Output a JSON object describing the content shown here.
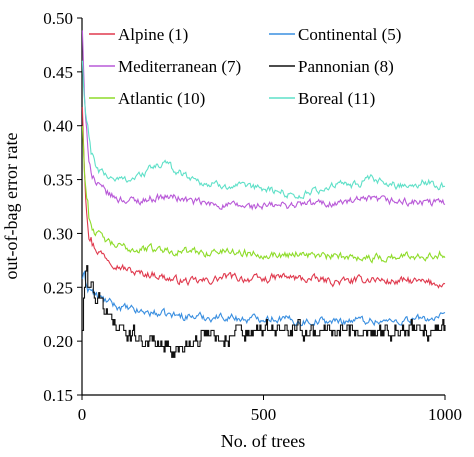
{
  "chart_data": {
    "type": "line",
    "title": "",
    "xlabel": "No. of trees",
    "ylabel": "out-of-bag error rate",
    "xlim": [
      0,
      1000
    ],
    "ylim": [
      0.15,
      0.5
    ],
    "xticks": [
      0,
      500,
      1000
    ],
    "yticks": [
      0.15,
      0.2,
      0.25,
      0.3,
      0.35,
      0.4,
      0.45,
      0.5
    ],
    "ytick_labels": [
      "0.15",
      "0.20",
      "0.25",
      "0.30",
      "0.35",
      "0.40",
      "0.45",
      "0.50"
    ],
    "grid": false,
    "legend_position": "top, inside plot (two columns)",
    "series": [
      {
        "name": "Alpine (1)",
        "color": "#e03a4e",
        "x": [
          1,
          5,
          10,
          20,
          30,
          40,
          60,
          80,
          100,
          150,
          200,
          250,
          300,
          350,
          400,
          450,
          500,
          550,
          600,
          650,
          700,
          750,
          800,
          850,
          900,
          950,
          1000
        ],
        "y": [
          0.42,
          0.38,
          0.34,
          0.3,
          0.29,
          0.285,
          0.28,
          0.275,
          0.27,
          0.263,
          0.262,
          0.257,
          0.255,
          0.256,
          0.26,
          0.258,
          0.257,
          0.26,
          0.258,
          0.257,
          0.255,
          0.256,
          0.258,
          0.255,
          0.256,
          0.254,
          0.253
        ]
      },
      {
        "name": "Continental (5)",
        "color": "#3a8fe0",
        "x": [
          1,
          5,
          10,
          20,
          30,
          50,
          80,
          100,
          150,
          200,
          250,
          300,
          350,
          400,
          450,
          500,
          550,
          600,
          650,
          700,
          750,
          800,
          850,
          900,
          950,
          1000
        ],
        "y": [
          0.26,
          0.258,
          0.255,
          0.25,
          0.245,
          0.24,
          0.235,
          0.232,
          0.228,
          0.226,
          0.224,
          0.223,
          0.222,
          0.223,
          0.22,
          0.222,
          0.221,
          0.218,
          0.219,
          0.218,
          0.22,
          0.219,
          0.218,
          0.22,
          0.221,
          0.222
        ]
      },
      {
        "name": "Mediterranean (7)",
        "color": "#b95ad8",
        "x": [
          1,
          5,
          10,
          20,
          30,
          40,
          60,
          80,
          100,
          150,
          200,
          250,
          300,
          350,
          400,
          450,
          500,
          550,
          600,
          650,
          700,
          750,
          800,
          850,
          900,
          950,
          1000
        ],
        "y": [
          0.49,
          0.44,
          0.4,
          0.37,
          0.355,
          0.345,
          0.34,
          0.335,
          0.332,
          0.33,
          0.333,
          0.334,
          0.33,
          0.327,
          0.326,
          0.325,
          0.325,
          0.326,
          0.327,
          0.328,
          0.328,
          0.33,
          0.331,
          0.33,
          0.329,
          0.328,
          0.329
        ]
      },
      {
        "name": "Pannonian (8)",
        "color": "#111111",
        "x": [
          1,
          5,
          10,
          20,
          30,
          40,
          60,
          80,
          100,
          120,
          150,
          180,
          200,
          230,
          260,
          280,
          300,
          320,
          350,
          380,
          400,
          430,
          450,
          500,
          550,
          600,
          700,
          800,
          900,
          1000
        ],
        "y": [
          0.21,
          0.245,
          0.26,
          0.25,
          0.245,
          0.24,
          0.23,
          0.22,
          0.215,
          0.21,
          0.205,
          0.2,
          0.2,
          0.195,
          0.19,
          0.195,
          0.2,
          0.205,
          0.21,
          0.205,
          0.2,
          0.21,
          0.205,
          0.21,
          0.21,
          0.21,
          0.21,
          0.21,
          0.21,
          0.21
        ]
      },
      {
        "name": "Atlantic (10)",
        "color": "#8edc2a",
        "x": [
          1,
          5,
          10,
          20,
          30,
          40,
          60,
          80,
          100,
          150,
          200,
          250,
          300,
          350,
          400,
          450,
          500,
          550,
          600,
          650,
          700,
          750,
          800,
          850,
          900,
          950,
          1000
        ],
        "y": [
          0.4,
          0.37,
          0.345,
          0.315,
          0.305,
          0.3,
          0.295,
          0.29,
          0.288,
          0.285,
          0.286,
          0.284,
          0.283,
          0.282,
          0.284,
          0.282,
          0.281,
          0.28,
          0.282,
          0.279,
          0.278,
          0.279,
          0.277,
          0.278,
          0.279,
          0.28,
          0.281
        ]
      },
      {
        "name": "Boreal (11)",
        "color": "#5fe0c8",
        "x": [
          1,
          5,
          10,
          20,
          30,
          40,
          60,
          80,
          100,
          150,
          200,
          230,
          250,
          300,
          350,
          400,
          450,
          500,
          550,
          600,
          650,
          700,
          750,
          800,
          850,
          900,
          950,
          1000
        ],
        "y": [
          0.46,
          0.43,
          0.41,
          0.385,
          0.37,
          0.36,
          0.355,
          0.352,
          0.35,
          0.352,
          0.362,
          0.365,
          0.36,
          0.352,
          0.345,
          0.345,
          0.342,
          0.342,
          0.338,
          0.335,
          0.34,
          0.345,
          0.345,
          0.35,
          0.345,
          0.345,
          0.348,
          0.343
        ]
      }
    ]
  }
}
